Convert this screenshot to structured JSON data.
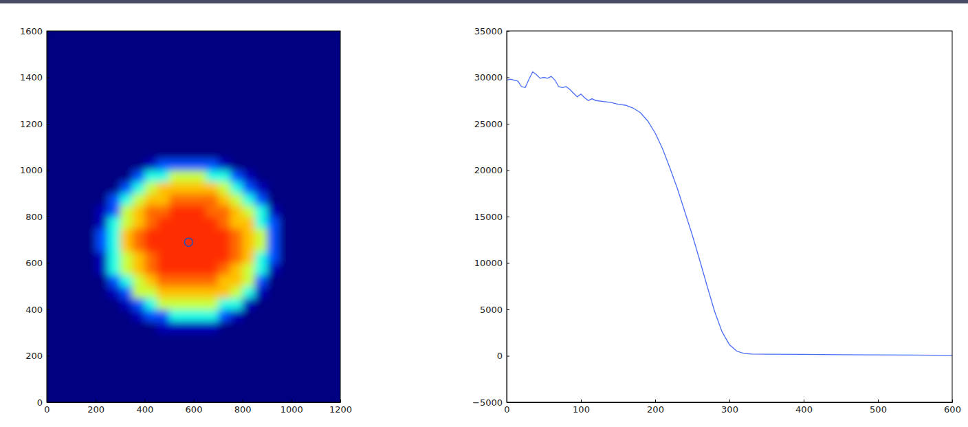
{
  "chart_data": [
    {
      "type": "heatmap",
      "x": [
        0,
        50,
        100,
        150,
        200,
        250,
        300,
        350,
        400,
        450,
        500,
        550,
        600,
        650,
        700,
        750,
        800,
        850,
        900,
        950,
        1000,
        1050,
        1100,
        1150,
        1200
      ],
      "y": [
        0,
        50,
        100,
        150,
        200,
        250,
        300,
        350,
        400,
        450,
        500,
        550,
        600,
        650,
        700,
        750,
        800,
        850,
        900,
        950,
        1000,
        1050,
        1100,
        1150,
        1200,
        1250,
        1300,
        1350,
        1400,
        1450,
        1500,
        1550,
        1600
      ],
      "cells": [
        [
          0,
          0,
          0,
          0,
          0,
          0,
          0,
          0,
          0,
          0,
          0,
          0,
          0,
          0,
          0,
          0,
          0,
          0,
          0,
          0,
          0,
          0,
          0,
          0
        ],
        [
          0,
          0,
          0,
          0,
          0,
          0,
          0,
          0,
          0,
          0,
          0,
          0,
          0,
          0,
          0,
          0,
          0,
          0,
          0,
          0,
          0,
          0,
          0,
          0
        ],
        [
          0,
          0,
          0,
          0,
          0,
          0,
          0,
          0,
          0,
          0,
          0,
          0,
          0,
          0,
          0,
          0,
          0,
          0,
          0,
          0,
          0,
          0,
          0,
          0
        ],
        [
          0,
          0,
          0,
          0,
          0,
          0,
          0,
          0,
          0,
          0,
          0,
          0,
          0,
          0,
          0,
          0,
          0,
          0,
          0,
          0,
          0,
          0,
          0,
          0
        ],
        [
          0,
          0,
          0,
          0,
          0,
          0,
          0,
          0,
          0,
          0,
          0,
          0,
          0,
          0,
          0,
          0,
          0,
          0,
          0,
          0,
          0,
          0,
          0,
          0
        ],
        [
          0,
          0,
          0,
          0,
          0,
          0,
          0,
          0,
          0,
          0,
          0,
          0,
          0,
          0,
          0,
          0,
          0,
          0,
          0,
          0,
          0,
          0,
          0,
          0
        ],
        [
          0,
          0,
          0,
          0,
          0,
          0,
          0,
          0,
          0,
          2000,
          2000,
          2000,
          2000,
          2000,
          0,
          0,
          0,
          0,
          0,
          0,
          0,
          0,
          0,
          0
        ],
        [
          0,
          0,
          0,
          0,
          0,
          0,
          0,
          2000,
          7000,
          7000,
          14000,
          14000,
          14000,
          14000,
          7000,
          2000,
          0,
          0,
          0,
          0,
          0,
          0,
          0,
          0
        ],
        [
          0,
          0,
          0,
          0,
          0,
          0,
          2000,
          7000,
          14000,
          20000,
          20000,
          20000,
          20000,
          20000,
          14000,
          14000,
          2000,
          0,
          0,
          0,
          0,
          0,
          0,
          0
        ],
        [
          0,
          0,
          0,
          0,
          0,
          2000,
          7000,
          20000,
          20000,
          24000,
          24000,
          24000,
          24000,
          24000,
          24000,
          20000,
          14000,
          2000,
          0,
          0,
          0,
          0,
          0,
          0
        ],
        [
          0,
          0,
          0,
          0,
          0,
          7000,
          14000,
          20000,
          24000,
          27000,
          27000,
          27000,
          27000,
          27000,
          24000,
          24000,
          20000,
          7000,
          0,
          0,
          0,
          0,
          0,
          0
        ],
        [
          0,
          0,
          0,
          0,
          2000,
          14000,
          20000,
          24000,
          27000,
          29000,
          29000,
          29000,
          29000,
          29000,
          27000,
          24000,
          20000,
          14000,
          2000,
          0,
          0,
          0,
          0,
          0
        ],
        [
          0,
          0,
          0,
          0,
          2000,
          14000,
          20000,
          24000,
          27000,
          29000,
          29000,
          29000,
          29000,
          29000,
          29000,
          27000,
          24000,
          14000,
          7000,
          0,
          0,
          0,
          0,
          0
        ],
        [
          0,
          0,
          0,
          0,
          7000,
          14000,
          24000,
          27000,
          29000,
          29000,
          29000,
          29000,
          29000,
          29000,
          29000,
          27000,
          24000,
          20000,
          7000,
          0,
          0,
          0,
          0,
          0
        ],
        [
          0,
          0,
          0,
          0,
          7000,
          14000,
          24000,
          27000,
          29000,
          29000,
          29000,
          29000,
          29000,
          29000,
          29000,
          27000,
          24000,
          20000,
          7000,
          0,
          0,
          0,
          0,
          0
        ],
        [
          0,
          0,
          0,
          0,
          2000,
          14000,
          20000,
          24000,
          27000,
          29000,
          29000,
          29000,
          29000,
          29000,
          27000,
          24000,
          24000,
          14000,
          7000,
          0,
          0,
          0,
          0,
          0
        ],
        [
          0,
          0,
          0,
          0,
          2000,
          7000,
          20000,
          24000,
          27000,
          27000,
          29000,
          29000,
          29000,
          27000,
          27000,
          24000,
          20000,
          14000,
          2000,
          0,
          0,
          0,
          0,
          0
        ],
        [
          0,
          0,
          0,
          0,
          0,
          7000,
          14000,
          20000,
          24000,
          24000,
          27000,
          27000,
          27000,
          27000,
          24000,
          20000,
          14000,
          7000,
          0,
          0,
          0,
          0,
          0,
          0
        ],
        [
          0,
          0,
          0,
          0,
          0,
          0,
          7000,
          14000,
          20000,
          24000,
          24000,
          24000,
          24000,
          24000,
          20000,
          14000,
          7000,
          2000,
          0,
          0,
          0,
          0,
          0,
          0
        ],
        [
          0,
          0,
          0,
          0,
          0,
          0,
          0,
          7000,
          14000,
          14000,
          20000,
          20000,
          20000,
          14000,
          14000,
          7000,
          2000,
          0,
          0,
          0,
          0,
          0,
          0,
          0
        ],
        [
          0,
          0,
          0,
          0,
          0,
          0,
          0,
          0,
          2000,
          7000,
          7000,
          7000,
          7000,
          7000,
          2000,
          0,
          0,
          0,
          0,
          0,
          0,
          0,
          0,
          0
        ],
        [
          0,
          0,
          0,
          0,
          0,
          0,
          0,
          0,
          0,
          0,
          0,
          0,
          0,
          0,
          0,
          0,
          0,
          0,
          0,
          0,
          0,
          0,
          0,
          0
        ],
        [
          0,
          0,
          0,
          0,
          0,
          0,
          0,
          0,
          0,
          0,
          0,
          0,
          0,
          0,
          0,
          0,
          0,
          0,
          0,
          0,
          0,
          0,
          0,
          0
        ],
        [
          0,
          0,
          0,
          0,
          0,
          0,
          0,
          0,
          0,
          0,
          0,
          0,
          0,
          0,
          0,
          0,
          0,
          0,
          0,
          0,
          0,
          0,
          0,
          0
        ],
        [
          0,
          0,
          0,
          0,
          0,
          0,
          0,
          0,
          0,
          0,
          0,
          0,
          0,
          0,
          0,
          0,
          0,
          0,
          0,
          0,
          0,
          0,
          0,
          0
        ],
        [
          0,
          0,
          0,
          0,
          0,
          0,
          0,
          0,
          0,
          0,
          0,
          0,
          0,
          0,
          0,
          0,
          0,
          0,
          0,
          0,
          0,
          0,
          0,
          0
        ],
        [
          0,
          0,
          0,
          0,
          0,
          0,
          0,
          0,
          0,
          0,
          0,
          0,
          0,
          0,
          0,
          0,
          0,
          0,
          0,
          0,
          0,
          0,
          0,
          0
        ],
        [
          0,
          0,
          0,
          0,
          0,
          0,
          0,
          0,
          0,
          0,
          0,
          0,
          0,
          0,
          0,
          0,
          0,
          0,
          0,
          0,
          0,
          0,
          0,
          0
        ],
        [
          0,
          0,
          0,
          0,
          0,
          0,
          0,
          0,
          0,
          0,
          0,
          0,
          0,
          0,
          0,
          0,
          0,
          0,
          0,
          0,
          0,
          0,
          0,
          0
        ],
        [
          0,
          0,
          0,
          0,
          0,
          0,
          0,
          0,
          0,
          0,
          0,
          0,
          0,
          0,
          0,
          0,
          0,
          0,
          0,
          0,
          0,
          0,
          0,
          0
        ],
        [
          0,
          0,
          0,
          0,
          0,
          0,
          0,
          0,
          0,
          0,
          0,
          0,
          0,
          0,
          0,
          0,
          0,
          0,
          0,
          0,
          0,
          0,
          0,
          0
        ],
        [
          0,
          0,
          0,
          0,
          0,
          0,
          0,
          0,
          0,
          0,
          0,
          0,
          0,
          0,
          0,
          0,
          0,
          0,
          0,
          0,
          0,
          0,
          0,
          0
        ]
      ],
      "color_range": [
        0,
        35000
      ],
      "points": {
        "x": [
          580
        ],
        "y": [
          690
        ]
      },
      "xlim": [
        0,
        1200
      ],
      "ylim": [
        0,
        1600
      ],
      "xticks": [
        0,
        200,
        400,
        600,
        800,
        1000,
        1200
      ],
      "yticks": [
        0,
        200,
        400,
        600,
        800,
        1000,
        1200,
        1400,
        1600
      ]
    },
    {
      "type": "line",
      "x": [
        0,
        5,
        10,
        15,
        20,
        25,
        30,
        35,
        40,
        45,
        50,
        55,
        60,
        65,
        70,
        75,
        80,
        85,
        90,
        95,
        100,
        105,
        110,
        115,
        120,
        130,
        140,
        150,
        160,
        170,
        180,
        190,
        200,
        210,
        220,
        230,
        240,
        250,
        260,
        270,
        280,
        290,
        300,
        310,
        320,
        330,
        350,
        400,
        450,
        500,
        550,
        600
      ],
      "values": [
        29700,
        29800,
        29700,
        29600,
        29000,
        28900,
        29800,
        30600,
        30300,
        29900,
        30000,
        29900,
        30100,
        29700,
        29000,
        28900,
        29000,
        28700,
        28300,
        27900,
        28200,
        27800,
        27500,
        27700,
        27500,
        27400,
        27300,
        27100,
        27000,
        26700,
        26200,
        25300,
        24000,
        22300,
        20200,
        18000,
        15500,
        13000,
        10300,
        7500,
        4800,
        2600,
        1200,
        500,
        250,
        200,
        180,
        150,
        120,
        100,
        80,
        50
      ],
      "color": "#4a6cf7",
      "xlim": [
        0,
        600
      ],
      "ylim": [
        -5000,
        35000
      ],
      "xticks": [
        0,
        100,
        200,
        300,
        400,
        500,
        600
      ],
      "yticks": [
        {
          "value": -5000,
          "label": "−5000"
        },
        0,
        5000,
        10000,
        15000,
        20000,
        25000,
        30000,
        35000
      ]
    }
  ]
}
